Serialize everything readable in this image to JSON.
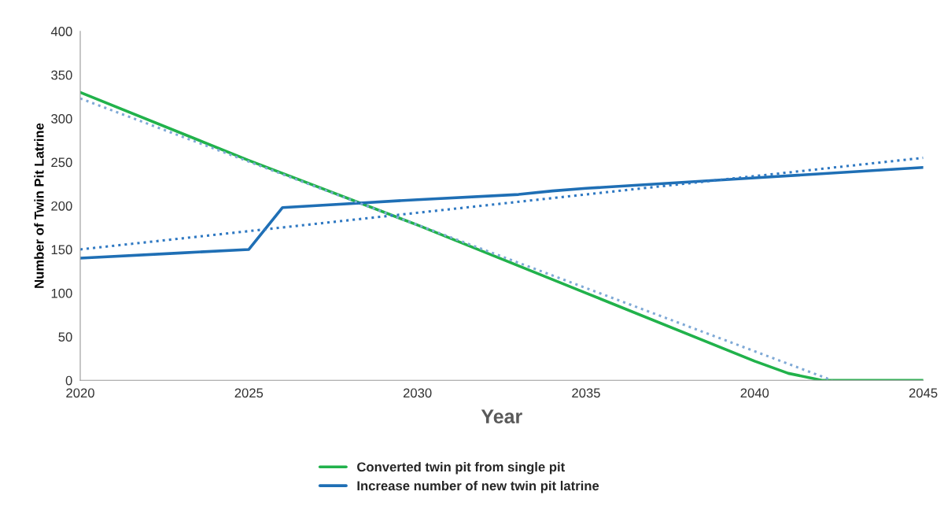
{
  "chart_data": {
    "type": "line",
    "xlabel": "Year",
    "ylabel": "Number of Twin Pit Latrine",
    "xlim": [
      2020,
      2045
    ],
    "xticks": [
      2020,
      2025,
      2030,
      2035,
      2040,
      2045
    ],
    "ylim": [
      0,
      400
    ],
    "yticks": [
      0,
      50,
      100,
      150,
      200,
      250,
      300,
      350,
      400
    ],
    "grid": false,
    "legend": "bottom",
    "marker": "none",
    "line_style": "solid",
    "series": [
      {
        "name": "Converted twin pit from single pit",
        "color": "#21b24b",
        "x": [
          2020,
          2025,
          2030,
          2035,
          2040,
          2041,
          2042,
          2045
        ],
        "values": [
          330,
          252,
          178,
          100,
          22,
          8,
          0,
          0
        ]
      },
      {
        "name": "Increase number of new twin pit latrine",
        "color": "#1f6fb5",
        "x": [
          2020,
          2023,
          2025,
          2026,
          2030,
          2033,
          2034,
          2035,
          2040,
          2045
        ],
        "values": [
          140,
          146,
          150,
          198,
          207,
          213,
          217,
          220,
          232,
          244
        ]
      },
      {
        "color": "#7fa9d6",
        "line_style": "dotted",
        "x": [
          2020,
          2042.3
        ],
        "values": [
          323,
          0
        ]
      },
      {
        "color": "#2e78c2",
        "line_style": "dotted",
        "x": [
          2020,
          2045
        ],
        "values": [
          150,
          255
        ]
      }
    ]
  }
}
